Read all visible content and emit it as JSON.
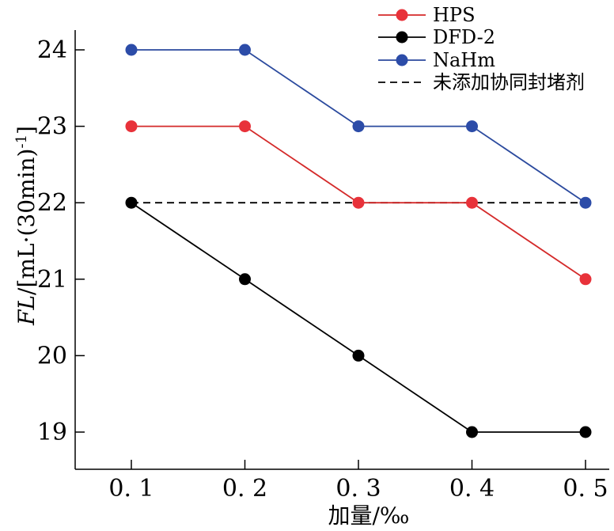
{
  "chart_data": {
    "type": "line",
    "title": "",
    "xlabel": "加量/‰",
    "ylabel": "FL/[mL·(30min)⁻¹]",
    "ylabel_parts": {
      "italic": "FL",
      "rest": "/[mL·(30min)",
      "sup": "-1",
      "close": "]"
    },
    "categories": [
      "0.1",
      "0.2",
      "0.3",
      "0.4",
      "0.5"
    ],
    "tick_labels_x": [
      "0. 1",
      "0. 2",
      "0. 3",
      "0. 4",
      "0. 5"
    ],
    "y_ticks": [
      19,
      20,
      21,
      22,
      23,
      24
    ],
    "ylim": [
      18.5,
      24.5
    ],
    "grid": false,
    "legend_position": "top-right",
    "series": [
      {
        "name": "HPS",
        "values": [
          23,
          23,
          22,
          22,
          21
        ],
        "color": "#d42a2a",
        "marker_color": "#e8323a",
        "style": "solid-marker"
      },
      {
        "name": "DFD-2",
        "values": [
          22,
          21,
          20,
          19,
          19
        ],
        "color": "#000000",
        "marker_color": "#000000",
        "style": "solid-marker"
      },
      {
        "name": "NaHm",
        "values": [
          24,
          24,
          23,
          23,
          22
        ],
        "color": "#2b4a9e",
        "marker_color": "#2c4ca8",
        "style": "solid-marker"
      },
      {
        "name": "未添加协同封堵剂",
        "values": [
          22,
          22,
          22,
          22,
          22
        ],
        "color": "#000000",
        "style": "dashed"
      }
    ]
  }
}
